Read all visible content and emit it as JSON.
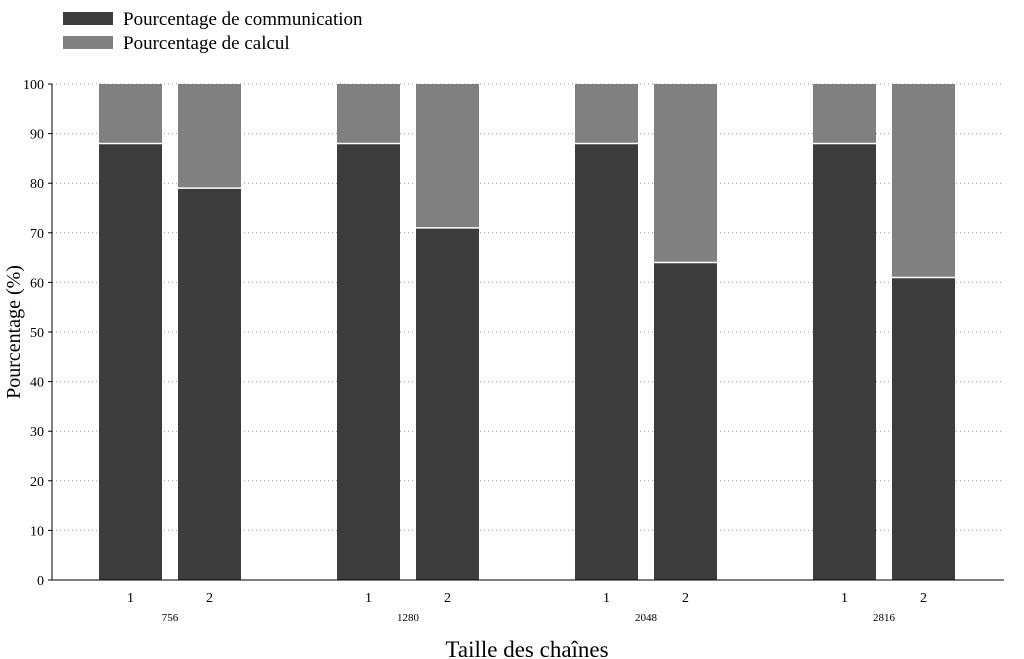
{
  "chart_data": {
    "type": "bar",
    "stacked": true,
    "xlabel": "Taille des chaînes",
    "ylabel": "Pourcentage (%)",
    "ylim": [
      0,
      100
    ],
    "yticks": [
      0,
      10,
      20,
      30,
      40,
      50,
      60,
      70,
      80,
      90,
      100
    ],
    "grid": true,
    "legend_position": "top-left",
    "groups": [
      "756",
      "1280",
      "2048",
      "2816"
    ],
    "subcategories": [
      "1",
      "2"
    ],
    "series": [
      {
        "name": "Pourcentage de communication",
        "color": "#3c3c3c",
        "values": [
          [
            88,
            79
          ],
          [
            88,
            71
          ],
          [
            88,
            64
          ],
          [
            88,
            61
          ]
        ]
      },
      {
        "name": "Pourcentage de calcul",
        "color": "#808080",
        "values": [
          [
            12,
            21
          ],
          [
            12,
            29
          ],
          [
            12,
            36
          ],
          [
            12,
            39
          ]
        ]
      }
    ]
  }
}
